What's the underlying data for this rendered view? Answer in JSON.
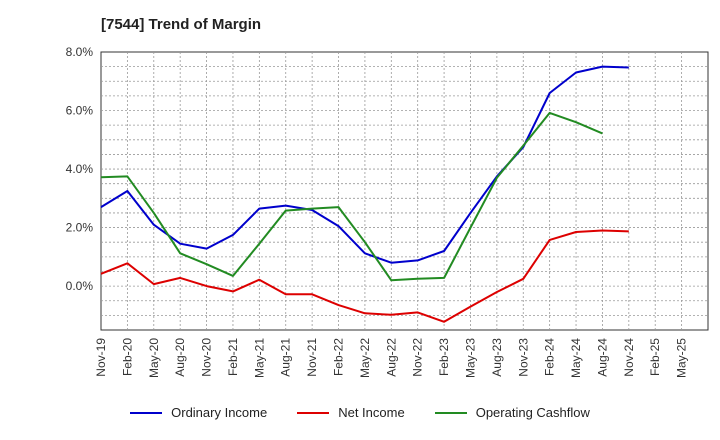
{
  "chart_data": {
    "type": "line",
    "title": "[7544]  Trend of Margin",
    "xlabel": "",
    "ylabel": "",
    "ylim": [
      -1.5,
      8.0
    ],
    "y_ticks": [
      0.0,
      2.0,
      4.0,
      6.0,
      8.0
    ],
    "y_tick_labels": [
      "0.0%",
      "2.0%",
      "4.0%",
      "6.0%",
      "8.0%"
    ],
    "categories": [
      "Nov-19",
      "Feb-20",
      "May-20",
      "Aug-20",
      "Nov-20",
      "Feb-21",
      "May-21",
      "Aug-21",
      "Nov-21",
      "Feb-22",
      "May-22",
      "Aug-22",
      "Nov-22",
      "Feb-23",
      "May-23",
      "Aug-23",
      "Nov-23",
      "Feb-24",
      "May-24",
      "Aug-24",
      "Nov-24",
      "Feb-25",
      "May-25"
    ],
    "grid": true,
    "legend_position": "bottom",
    "series": [
      {
        "name": "Ordinary Income",
        "color": "#0000cc",
        "values": [
          2.7,
          3.25,
          2.1,
          1.45,
          1.28,
          1.75,
          2.65,
          2.75,
          2.6,
          2.05,
          1.12,
          0.8,
          0.88,
          1.2,
          2.5,
          3.75,
          4.75,
          6.6,
          7.3,
          7.5,
          7.47,
          null,
          null
        ]
      },
      {
        "name": "Net Income",
        "color": "#dd0000",
        "values": [
          0.42,
          0.78,
          0.07,
          0.28,
          0.0,
          -0.18,
          0.22,
          -0.28,
          -0.28,
          -0.65,
          -0.93,
          -0.98,
          -0.9,
          -1.22,
          -0.7,
          -0.2,
          0.25,
          1.58,
          1.85,
          1.9,
          1.87,
          null,
          null
        ]
      },
      {
        "name": "Operating Cashflow",
        "color": "#228b22",
        "values": [
          3.72,
          3.75,
          2.5,
          1.12,
          0.75,
          0.35,
          1.45,
          2.58,
          2.65,
          2.7,
          1.5,
          0.2,
          0.25,
          0.28,
          2.0,
          3.7,
          4.8,
          5.92,
          5.6,
          5.22,
          null,
          null,
          null
        ]
      }
    ]
  }
}
